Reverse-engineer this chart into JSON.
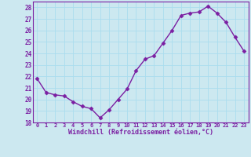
{
  "x": [
    0,
    1,
    2,
    3,
    4,
    5,
    6,
    7,
    8,
    9,
    10,
    11,
    12,
    13,
    14,
    15,
    16,
    17,
    18,
    19,
    20,
    21,
    22,
    23
  ],
  "y": [
    21.8,
    20.6,
    20.4,
    20.3,
    19.8,
    19.4,
    19.2,
    18.4,
    19.1,
    20.0,
    20.9,
    22.5,
    23.5,
    23.8,
    24.9,
    26.0,
    27.3,
    27.5,
    27.6,
    28.1,
    27.5,
    26.7,
    25.4,
    24.2
  ],
  "line_color": "#7b1fa2",
  "marker": "D",
  "marker_size": 2.5,
  "bg_color": "#cce8f0",
  "grid_color": "#aaddee",
  "xlabel": "Windchill (Refroidissement éolien,°C)",
  "ylabel": "",
  "title": "",
  "ylim": [
    18,
    28.5
  ],
  "yticks": [
    18,
    19,
    20,
    21,
    22,
    23,
    24,
    25,
    26,
    27,
    28
  ],
  "xticks": [
    0,
    1,
    2,
    3,
    4,
    5,
    6,
    7,
    8,
    9,
    10,
    11,
    12,
    13,
    14,
    15,
    16,
    17,
    18,
    19,
    20,
    21,
    22,
    23
  ],
  "label_color": "#7b1fa2",
  "tick_color": "#7b1fa2",
  "spine_color": "#7b1fa2",
  "font_family": "monospace"
}
